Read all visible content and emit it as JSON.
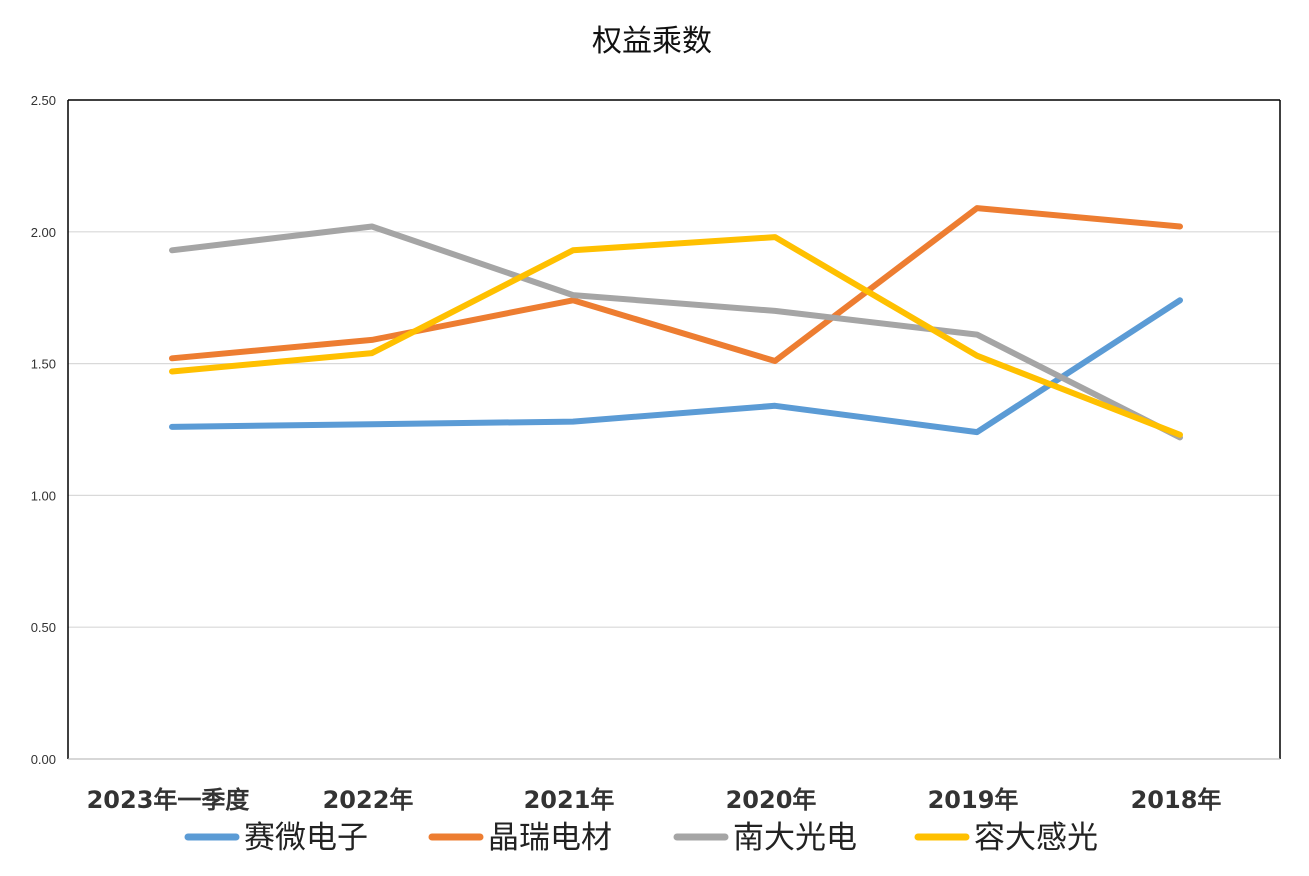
{
  "chart_data": {
    "type": "line",
    "title": "权益乘数",
    "xlabel": "",
    "ylabel": "",
    "categories": [
      "2023年一季度",
      "2022年",
      "2021年",
      "2020年",
      "2019年",
      "2018年"
    ],
    "ylim": [
      0,
      2.5
    ],
    "yticks": [
      "0.00",
      "0.50",
      "1.00",
      "1.50",
      "2.00",
      "2.50"
    ],
    "grid": true,
    "legend_position": "bottom",
    "series": [
      {
        "name": "赛微电子",
        "color": "#5B9BD5",
        "values": [
          1.26,
          1.27,
          1.28,
          1.34,
          1.24,
          1.74
        ]
      },
      {
        "name": "晶瑞电材",
        "color": "#ED7D31",
        "values": [
          1.52,
          1.59,
          1.74,
          1.51,
          2.09,
          2.02
        ]
      },
      {
        "name": "南大光电",
        "color": "#A5A5A5",
        "values": [
          1.93,
          2.02,
          1.76,
          1.7,
          1.61,
          1.22
        ]
      },
      {
        "name": "容大感光",
        "color": "#FFC000",
        "values": [
          1.47,
          1.54,
          1.93,
          1.98,
          1.53,
          1.23
        ]
      }
    ]
  }
}
